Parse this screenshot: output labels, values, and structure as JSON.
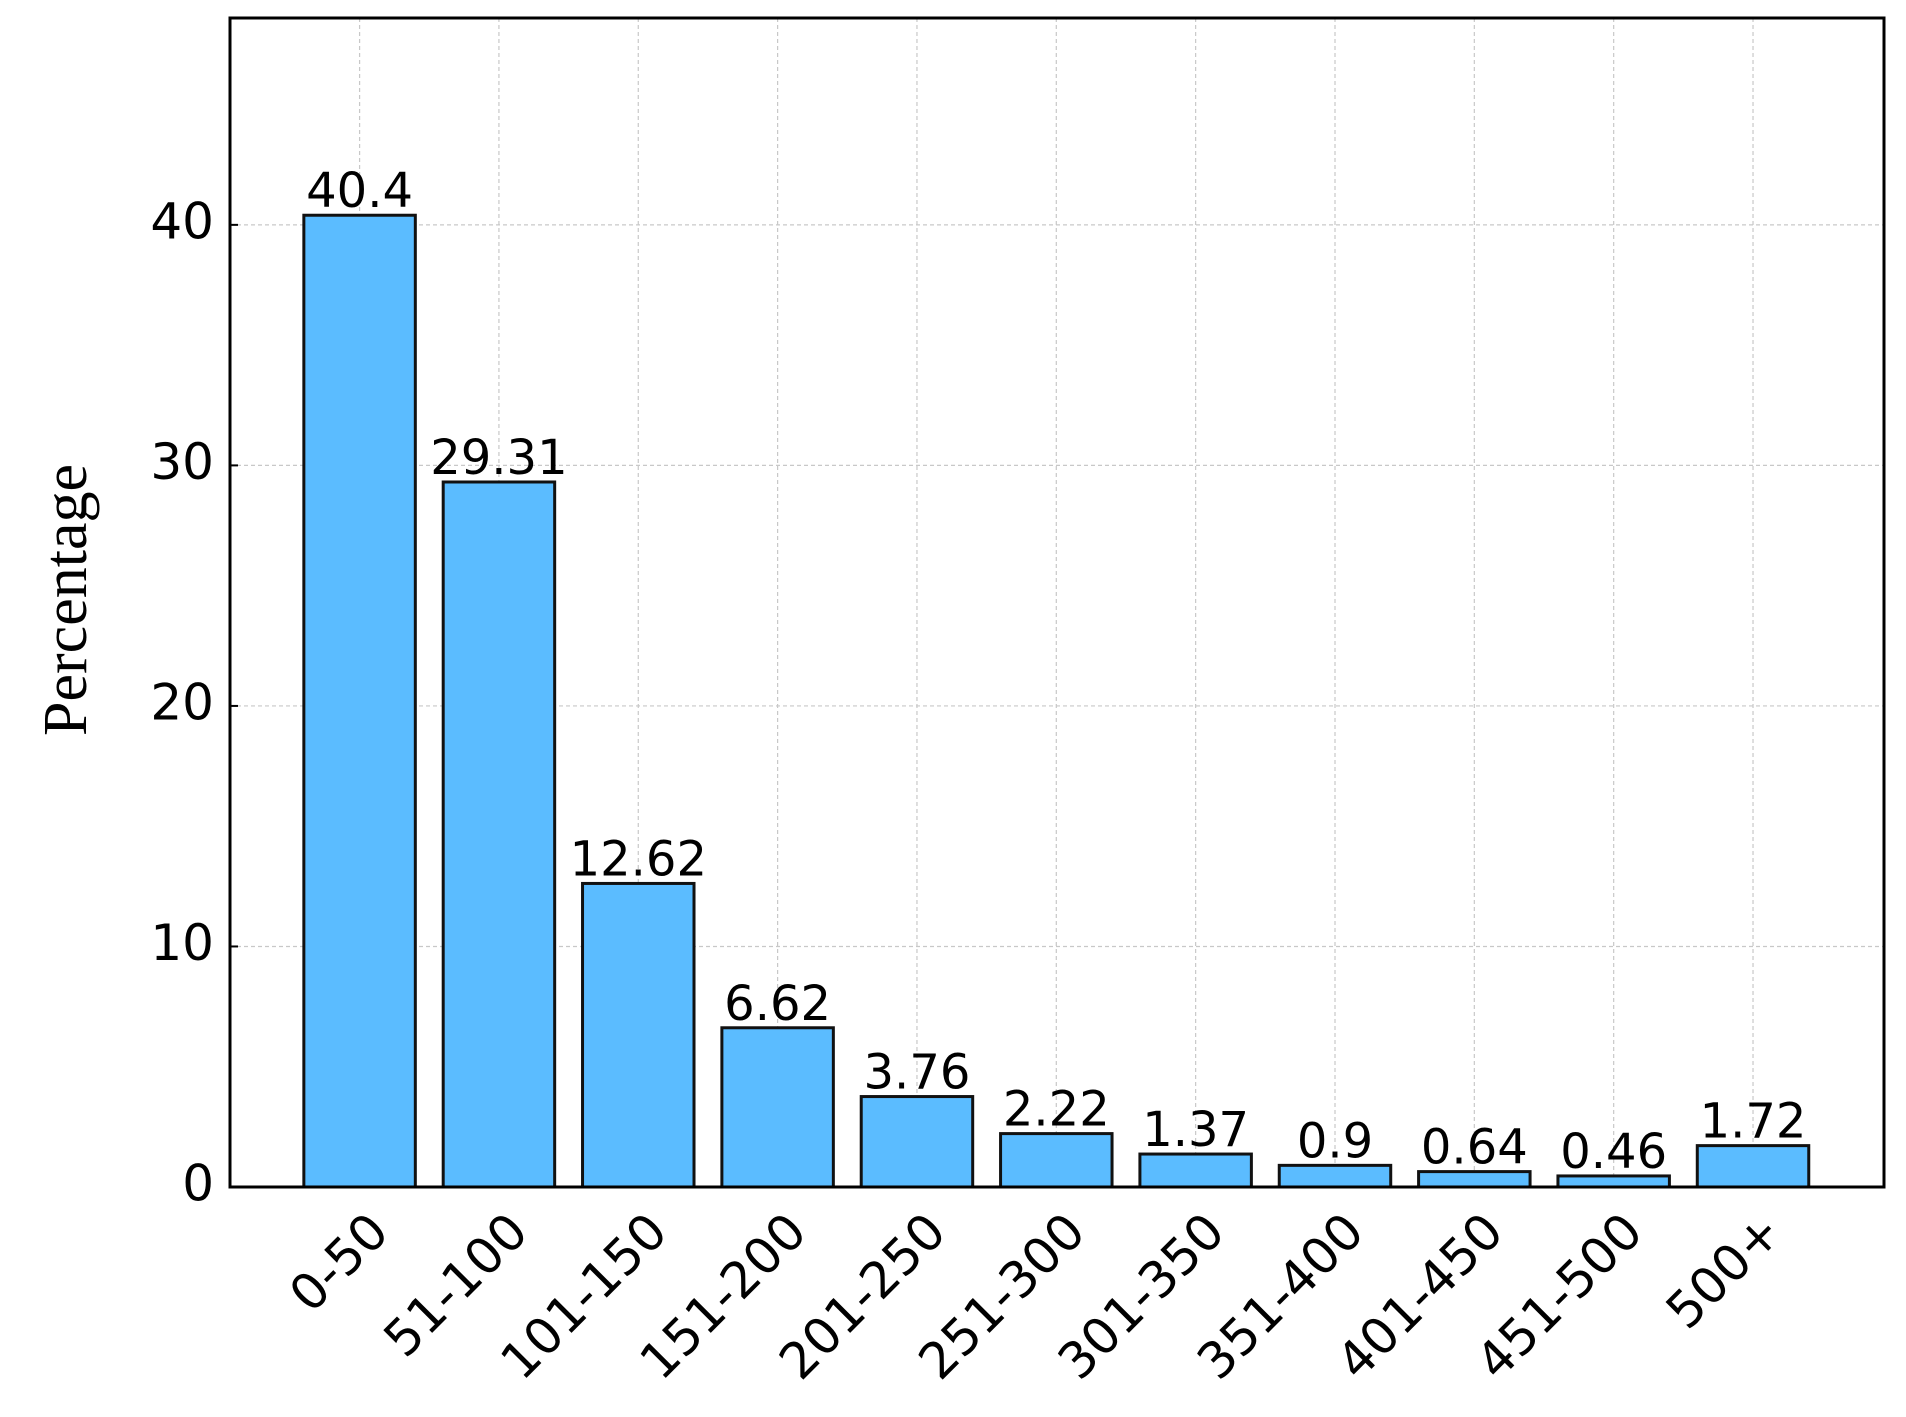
{
  "chart_data": {
    "type": "bar",
    "y_label": "Percentage",
    "categories": [
      "0-50",
      "51-100",
      "101-150",
      "151-200",
      "201-250",
      "251-300",
      "301-350",
      "351-400",
      "401-450",
      "451-500",
      "500+"
    ],
    "values": [
      40.4,
      29.31,
      12.62,
      6.62,
      3.76,
      2.22,
      1.37,
      0.9,
      0.64,
      0.46,
      1.72
    ],
    "color": "#5bbcff",
    "edge_color": "#111111",
    "ylim": [
      0,
      48.6
    ],
    "yticks": [
      0,
      10,
      20,
      30,
      40
    ],
    "grid": true
  }
}
